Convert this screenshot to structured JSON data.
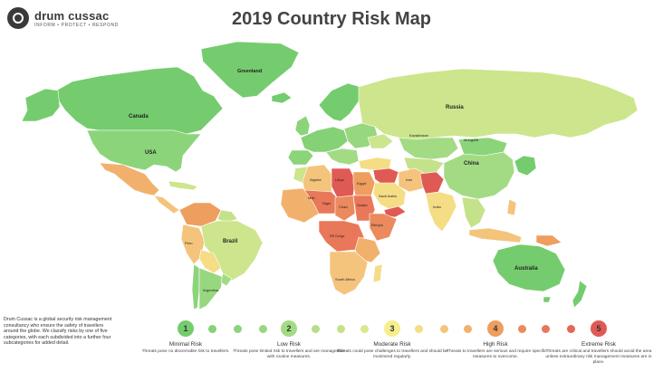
{
  "header": {
    "logo_name": "drum cussac",
    "logo_tagline": "INFORM • PROTECT • RESPOND",
    "title": "2019 Country Risk Map"
  },
  "colors": {
    "risk_1": "#75cc6e",
    "risk_1_2": "#8bd47a",
    "risk_2": "#a3db85",
    "risk_2_3": "#cde58c",
    "risk_3": "#f6ee8f",
    "risk_3_4": "#f4c47c",
    "risk_4": "#ee9e5f",
    "risk_4_5": "#e97759",
    "risk_5": "#e05a55",
    "ocean": "#ffffff",
    "border": "#ffffff"
  },
  "map": {
    "labels": {
      "greenland": "Greenland",
      "canada": "Canada",
      "usa": "USA",
      "russia": "Russia",
      "china": "China",
      "kazakhstan": "Kazakhstan",
      "mongolia": "Mongolia",
      "brazil": "Brazil",
      "australia": "Australia",
      "algeria": "Algeria",
      "libya": "Libya",
      "egypt": "Egypt",
      "chad": "Chad",
      "sudan": "Sudan",
      "mali": "Mali",
      "niger": "Niger",
      "india": "India",
      "iran": "Iran",
      "saudi_arabia": "Saudi Arabia",
      "south_africa": "South Africa",
      "argentina": "Argentina",
      "peru": "Peru",
      "drc": "DR Congo",
      "ethiopia": "Ethiopia"
    }
  },
  "blurb": "Drum Cussac is a global security risk management consultancy who ensure the safety of travellers around the globe. We classify risks by one of five categories, with each subdivided into a further four subcategories for added detail.",
  "legend": {
    "levels": [
      {
        "number": "1",
        "name": "Minimal Risk",
        "description": "Threats pose no discernable risk to travellers."
      },
      {
        "number": "2",
        "name": "Low Risk",
        "description": "Threats pose limited risk to travellers and are manageable with routine measures."
      },
      {
        "number": "3",
        "name": "Moderate Risk",
        "description": "Threats could pose challenges to travellers and should be monitored regularly."
      },
      {
        "number": "4",
        "name": "High Risk",
        "description": ": Threats to travellers are serious and require specific measures to overcome."
      },
      {
        "number": "5",
        "name": "Extreme Risk",
        "description": "Threats are critical and travellers should avoid the area unless extraordinary risk management measures are in place."
      }
    ],
    "steps": [
      "#75cc6e",
      "#85d175",
      "#8bd47a",
      "#97d77f",
      "#a3db85",
      "#b6df88",
      "#c4e28a",
      "#dde78c",
      "#f6ee8f",
      "#f5dd86",
      "#f4c47c",
      "#f1b16d",
      "#ee9e5f",
      "#eb8a5c",
      "#e97759",
      "#e56857",
      "#e05a55"
    ]
  }
}
